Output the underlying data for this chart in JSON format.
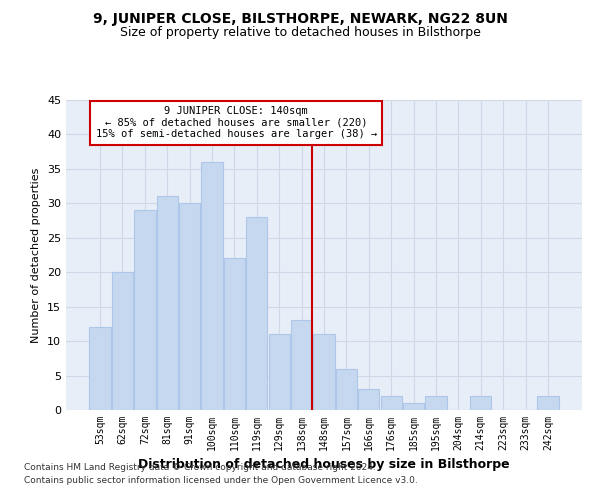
{
  "title": "9, JUNIPER CLOSE, BILSTHORPE, NEWARK, NG22 8UN",
  "subtitle": "Size of property relative to detached houses in Bilsthorpe",
  "xlabel": "Distribution of detached houses by size in Bilsthorpe",
  "ylabel": "Number of detached properties",
  "categories": [
    "53sqm",
    "62sqm",
    "72sqm",
    "81sqm",
    "91sqm",
    "100sqm",
    "110sqm",
    "119sqm",
    "129sqm",
    "138sqm",
    "148sqm",
    "157sqm",
    "166sqm",
    "176sqm",
    "185sqm",
    "195sqm",
    "204sqm",
    "214sqm",
    "223sqm",
    "233sqm",
    "242sqm"
  ],
  "values": [
    12,
    20,
    29,
    31,
    30,
    36,
    22,
    28,
    11,
    13,
    11,
    6,
    3,
    2,
    1,
    2,
    0,
    2,
    0,
    0,
    2
  ],
  "bar_color": "#c5d8f0",
  "bar_edge_color": "#aec6e8",
  "bar_linewidth": 0.8,
  "grid_color": "#d0d8e8",
  "bg_color": "#e8eef8",
  "annotation_text": "9 JUNIPER CLOSE: 140sqm\n← 85% of detached houses are smaller (220)\n15% of semi-detached houses are larger (38) →",
  "vline_bar_index": 9,
  "vline_color": "#cc0000",
  "annotation_box_color": "#cc0000",
  "ylim": [
    0,
    45
  ],
  "yticks": [
    0,
    5,
    10,
    15,
    20,
    25,
    30,
    35,
    40,
    45
  ],
  "footer_line1": "Contains HM Land Registry data © Crown copyright and database right 2024.",
  "footer_line2": "Contains public sector information licensed under the Open Government Licence v3.0."
}
